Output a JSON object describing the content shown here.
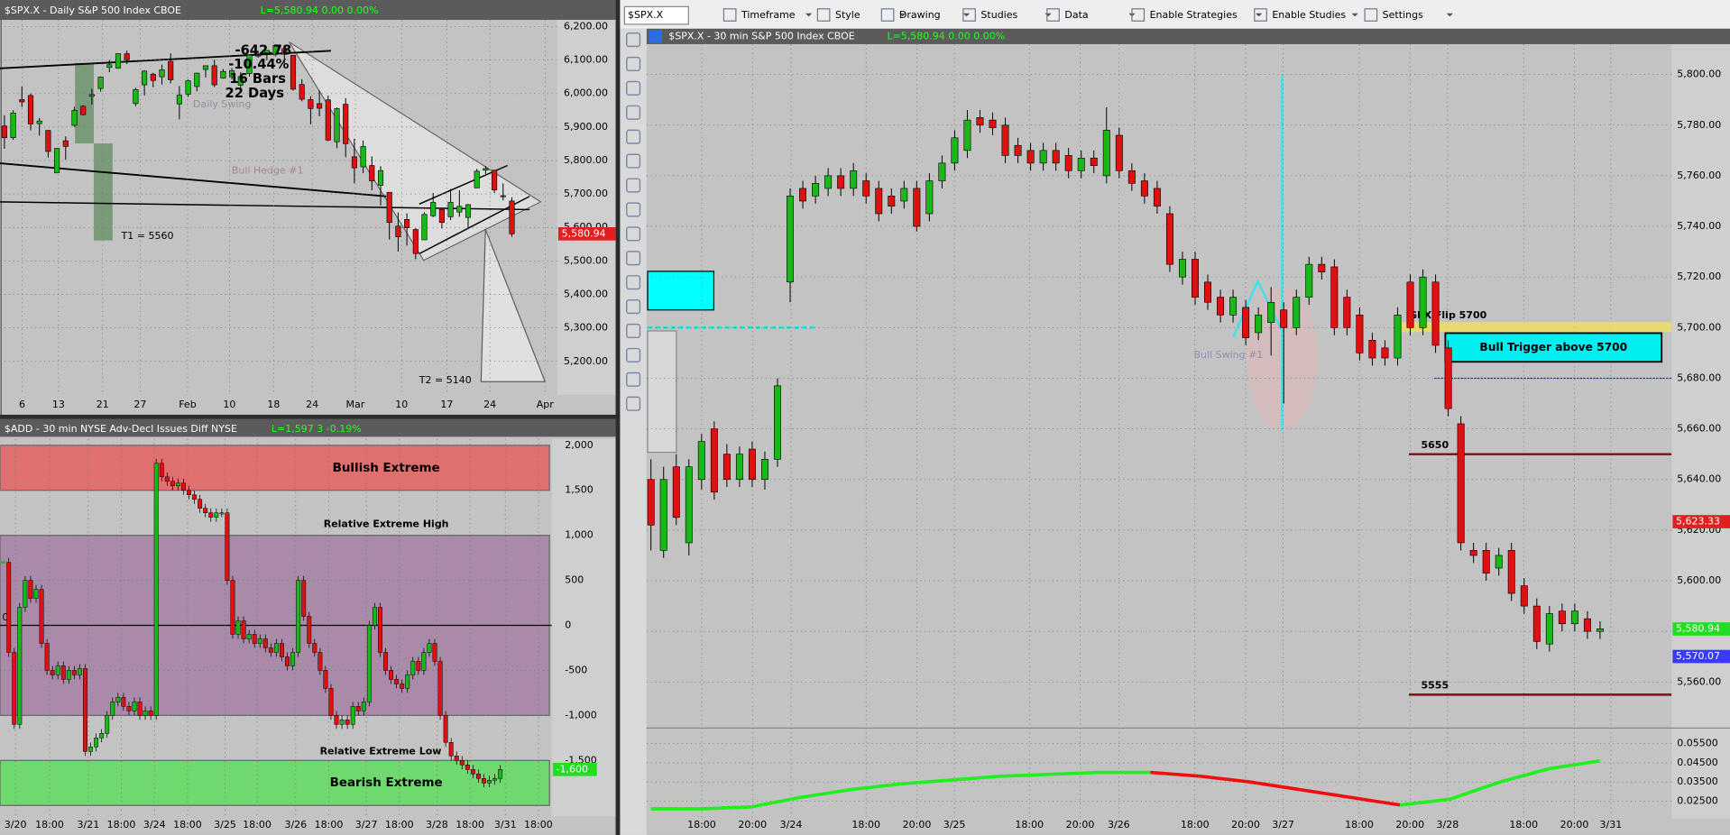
{
  "toolbar": {
    "symbol": "$SPX.X",
    "items": [
      "Timeframe",
      "Style",
      "Drawing",
      "Studies",
      "Data",
      "Enable Strategies",
      "Enable Studies",
      "Settings"
    ]
  },
  "daily": {
    "header": "$SPX.X - Daily  S&P 500 Index  CBOE",
    "quote": "L=5,580.94  0.00  0.00%",
    "ylim": [
      5100,
      6220
    ],
    "yticks": [
      {
        "value": 6200,
        "label": "6,200.00"
      },
      {
        "value": 6100,
        "label": "6,100.00"
      },
      {
        "value": 6000,
        "label": "6,000.00"
      },
      {
        "value": 5900,
        "label": "5,900.00"
      },
      {
        "value": 5800,
        "label": "5,800.00"
      },
      {
        "value": 5700,
        "label": "5,700.00"
      },
      {
        "value": 5600,
        "label": "5,600.00"
      },
      {
        "value": 5500,
        "label": "5,500.00"
      },
      {
        "value": 5400,
        "label": "5,400.00"
      },
      {
        "value": 5300,
        "label": "5,300.00"
      },
      {
        "value": 5200,
        "label": "5,200.00"
      }
    ],
    "xticks": [
      "6",
      "13",
      "21",
      "27",
      "Feb",
      "10",
      "18",
      "24",
      "Mar",
      "10",
      "17",
      "24",
      "Apr"
    ],
    "candles": [
      [
        5903,
        5935,
        5835,
        5868
      ],
      [
        5868,
        5950,
        5862,
        5942
      ],
      [
        5982,
        6021,
        5960,
        5975
      ],
      [
        5994,
        6000,
        5890,
        5909
      ],
      [
        5910,
        5927,
        5874,
        5918
      ],
      [
        5890,
        5890,
        5809,
        5827
      ],
      [
        5763,
        5837,
        5773,
        5836
      ],
      [
        5859,
        5872,
        5802,
        5842
      ],
      [
        5905,
        5960,
        5900,
        5950
      ],
      [
        5962,
        5965,
        5935,
        5937
      ],
      [
        5992,
        6014,
        5967,
        5997
      ],
      [
        6015,
        6051,
        6006,
        6049
      ],
      [
        6078,
        6100,
        6064,
        6086
      ],
      [
        6076,
        6118,
        6074,
        6119
      ],
      [
        6119,
        6128,
        6088,
        6101
      ],
      [
        5970,
        6017,
        5962,
        6012
      ],
      [
        6026,
        6069,
        5994,
        6067
      ],
      [
        6058,
        6062,
        6019,
        6039
      ],
      [
        6050,
        6086,
        6027,
        6071
      ],
      [
        6096,
        6120,
        6030,
        6041
      ],
      [
        5969,
        6022,
        5923,
        5995
      ],
      [
        5998,
        6042,
        5990,
        6038
      ],
      [
        6021,
        6062,
        6007,
        6061
      ],
      [
        6072,
        6084,
        6048,
        6083
      ],
      [
        6083,
        6101,
        6019,
        6026
      ],
      [
        6046,
        6073,
        6044,
        6066
      ],
      [
        6050,
        6076,
        6042,
        6068
      ],
      [
        6025,
        6064,
        6004,
        6051
      ],
      [
        6060,
        6116,
        6051,
        6115
      ],
      [
        6115,
        6127,
        6107,
        6114
      ],
      [
        6121,
        6129,
        6099,
        6129
      ],
      [
        6117,
        6147,
        6111,
        6144
      ],
      [
        6134,
        6134,
        6084,
        6117
      ],
      [
        6114,
        6114,
        6009,
        6013
      ],
      [
        6027,
        6043,
        5977,
        5983
      ],
      [
        5982,
        5992,
        5908,
        5955
      ],
      [
        5970,
        6009,
        5932,
        5956
      ],
      [
        5981,
        5994,
        5858,
        5861
      ],
      [
        5856,
        5959,
        5837,
        5955
      ],
      [
        5968,
        5986,
        5810,
        5850
      ],
      [
        5811,
        5865,
        5732,
        5778
      ],
      [
        5781,
        5860,
        5762,
        5842
      ],
      [
        5785,
        5812,
        5711,
        5739
      ],
      [
        5726,
        5783,
        5666,
        5770
      ],
      [
        5705,
        5706,
        5564,
        5615
      ],
      [
        5604,
        5645,
        5528,
        5572
      ],
      [
        5624,
        5642,
        5546,
        5599
      ],
      [
        5594,
        5598,
        5505,
        5522
      ],
      [
        5563,
        5645,
        5563,
        5639
      ],
      [
        5635,
        5703,
        5631,
        5675
      ],
      [
        5654,
        5654,
        5597,
        5615
      ],
      [
        5632,
        5715,
        5622,
        5675
      ],
      [
        5646,
        5711,
        5632,
        5663
      ],
      [
        5630,
        5670,
        5597,
        5668
      ],
      [
        5718,
        5775,
        5718,
        5768
      ],
      [
        5771,
        5784,
        5760,
        5776
      ],
      [
        5771,
        5772,
        5703,
        5712
      ],
      [
        5695,
        5732,
        5681,
        5693
      ],
      [
        5679,
        5690,
        5572,
        5581
      ]
    ],
    "annotations": [
      "-642.78",
      "-10.44%",
      "16 Bars",
      "22 Days",
      "T1 = 5560",
      "T2 = 5140",
      "Daily Swing",
      "Bull Hedge #1"
    ],
    "tags": [
      {
        "value": 5580.94,
        "label": "5,580.94",
        "color": "#e02020"
      }
    ]
  },
  "add": {
    "header": "$ADD - 30 min  NYSE Adv-Decl Issues Diff  NYSE",
    "quote": "L=1,597  3  -0.19%",
    "ylim": [
      -2120,
      2070
    ],
    "yticks": [
      {
        "value": 2000,
        "label": "2,000"
      },
      {
        "value": 1500,
        "label": "1,500"
      },
      {
        "value": 1000,
        "label": "1,000"
      },
      500,
      0,
      {
        "value": -500,
        "label": "-500"
      },
      {
        "value": -1000,
        "label": "-1,000"
      },
      {
        "value": -1500,
        "label": "-1,500"
      }
    ],
    "zero_label": "0",
    "xticks": [
      "3/20",
      "18:00",
      "3/21",
      "18:00",
      "3/24",
      "18:00",
      "3/25",
      "18:00",
      "3/26",
      "18:00",
      "3/27",
      "18:00",
      "3/28",
      "18:00",
      "3/31",
      "18:00"
    ],
    "zones": [
      {
        "label": "Bullish Extreme",
        "from": 1500,
        "to": 2000,
        "color": "#e07070"
      },
      {
        "label": "Relative Extreme High",
        "from": -1000,
        "to": 1000,
        "color": "#a98aa9"
      },
      {
        "label": "Bearish Extreme",
        "from": -2000,
        "to": -1500,
        "color": "#6fd86f"
      }
    ],
    "low_label": "Relative Extreme Low",
    "values": [
      700,
      -300,
      -1100,
      200,
      500,
      300,
      400,
      -200,
      -500,
      -550,
      -450,
      -600,
      -500,
      -550,
      -480,
      -1400,
      -1350,
      -1250,
      -1200,
      -1000,
      -850,
      -800,
      -900,
      -950,
      -850,
      -1000,
      -950,
      -1000,
      1800,
      1650,
      1600,
      1550,
      1580,
      1500,
      1450,
      1400,
      1300,
      1250,
      1200,
      1250,
      1250,
      500,
      -100,
      50,
      -150,
      -100,
      -200,
      -150,
      -250,
      -300,
      -200,
      -350,
      -450,
      -300,
      500,
      100,
      -200,
      -300,
      -500,
      -700,
      -1000,
      -1100,
      -1050,
      -1100,
      -900,
      -950,
      -850,
      0,
      200,
      -300,
      -500,
      -600,
      -650,
      -700,
      -550,
      -400,
      -500,
      -300,
      -200,
      -400,
      -1000,
      -1300,
      -1450,
      -1500,
      -1550,
      -1600,
      -1650,
      -1700,
      -1750,
      -1720,
      -1700,
      -1600
    ],
    "tags": [
      {
        "value": -1600,
        "label": "-1,600",
        "color": "#22dd22"
      }
    ]
  },
  "intraday": {
    "header": "$SPX.X - 30 min  S&P 500 Index  CBOE",
    "quote": "L=5,580.94  0.00  0.00%",
    "ylim": [
      5544,
      5812
    ],
    "yticks": [
      {
        "value": 5800,
        "label": "5,800.00"
      },
      {
        "value": 5780,
        "label": "5,780.00"
      },
      {
        "value": 5760,
        "label": "5,760.00"
      },
      {
        "value": 5740,
        "label": "5,740.00"
      },
      {
        "value": 5720,
        "label": "5,720.00"
      },
      {
        "value": 5700,
        "label": "5,700.00"
      },
      {
        "value": 5680,
        "label": "5,680.00"
      },
      {
        "value": 5660,
        "label": "5,660.00"
      },
      {
        "value": 5640,
        "label": "5,640.00"
      },
      {
        "value": 5620,
        "label": "5,620.00"
      },
      {
        "value": 5600,
        "label": "5,600.00"
      },
      {
        "value": 5580,
        "label": "5,580.00"
      },
      {
        "value": 5560,
        "label": "5,560.00"
      }
    ],
    "xticks": [
      "18:00",
      "20:00",
      "3/24",
      "18:00",
      "20:00",
      "3/25",
      "18:00",
      "20:00",
      "3/26",
      "18:00",
      "20:00",
      "3/27",
      "18:00",
      "20:00",
      "3/28",
      "18:00",
      "20:00",
      "3/31"
    ],
    "candles": [
      [
        5640,
        5648,
        5612,
        5622
      ],
      [
        5612,
        5645,
        5609,
        5640
      ],
      [
        5645,
        5650,
        5622,
        5625
      ],
      [
        5615,
        5648,
        5610,
        5645
      ],
      [
        5640,
        5658,
        5636,
        5655
      ],
      [
        5660,
        5663,
        5632,
        5635
      ],
      [
        5650,
        5654,
        5637,
        5640
      ],
      [
        5640,
        5653,
        5637,
        5650
      ],
      [
        5652,
        5655,
        5637,
        5640
      ],
      [
        5640,
        5651,
        5636,
        5648
      ],
      [
        5648,
        5680,
        5645,
        5677
      ],
      [
        5718,
        5755,
        5710,
        5752
      ],
      [
        5755,
        5758,
        5747,
        5750
      ],
      [
        5752,
        5760,
        5749,
        5757
      ],
      [
        5755,
        5763,
        5752,
        5760
      ],
      [
        5760,
        5763,
        5752,
        5755
      ],
      [
        5755,
        5765,
        5752,
        5762
      ],
      [
        5758,
        5761,
        5749,
        5752
      ],
      [
        5755,
        5758,
        5742,
        5745
      ],
      [
        5752,
        5755,
        5745,
        5748
      ],
      [
        5750,
        5758,
        5747,
        5755
      ],
      [
        5755,
        5758,
        5738,
        5740
      ],
      [
        5745,
        5761,
        5742,
        5758
      ],
      [
        5758,
        5768,
        5755,
        5765
      ],
      [
        5765,
        5778,
        5762,
        5775
      ],
      [
        5770,
        5786,
        5767,
        5782
      ],
      [
        5783,
        5786,
        5777,
        5780
      ],
      [
        5782,
        5785,
        5776,
        5779
      ],
      [
        5780,
        5783,
        5765,
        5768
      ],
      [
        5772,
        5775,
        5765,
        5768
      ],
      [
        5770,
        5773,
        5762,
        5765
      ],
      [
        5765,
        5773,
        5762,
        5770
      ],
      [
        5770,
        5773,
        5762,
        5765
      ],
      [
        5768,
        5771,
        5759,
        5762
      ],
      [
        5762,
        5770,
        5759,
        5767
      ],
      [
        5767,
        5770,
        5761,
        5764
      ],
      [
        5760,
        5787,
        5757,
        5778
      ],
      [
        5776,
        5779,
        5759,
        5762
      ],
      [
        5762,
        5765,
        5754,
        5757
      ],
      [
        5758,
        5761,
        5749,
        5752
      ],
      [
        5755,
        5758,
        5745,
        5748
      ],
      [
        5745,
        5748,
        5722,
        5725
      ],
      [
        5720,
        5730,
        5717,
        5727
      ],
      [
        5727,
        5730,
        5709,
        5712
      ],
      [
        5718,
        5721,
        5707,
        5710
      ],
      [
        5712,
        5715,
        5702,
        5705
      ],
      [
        5705,
        5715,
        5702,
        5712
      ],
      [
        5708,
        5711,
        5693,
        5696
      ],
      [
        5698,
        5708,
        5695,
        5705
      ],
      [
        5702,
        5716,
        5689,
        5710
      ],
      [
        5707,
        5710,
        5670,
        5700
      ],
      [
        5700,
        5715,
        5697,
        5712
      ],
      [
        5712,
        5728,
        5709,
        5725
      ],
      [
        5725,
        5728,
        5719,
        5722
      ],
      [
        5724,
        5727,
        5697,
        5700
      ],
      [
        5712,
        5715,
        5697,
        5700
      ],
      [
        5705,
        5708,
        5687,
        5690
      ],
      [
        5695,
        5698,
        5685,
        5688
      ],
      [
        5692,
        5695,
        5685,
        5688
      ],
      [
        5688,
        5708,
        5685,
        5705
      ],
      [
        5718,
        5721,
        5697,
        5700
      ],
      [
        5700,
        5723,
        5697,
        5720
      ],
      [
        5718,
        5721,
        5690,
        5693
      ],
      [
        5692,
        5695,
        5665,
        5668
      ],
      [
        5662,
        5665,
        5612,
        5615
      ],
      [
        5612,
        5615,
        5607,
        5610
      ],
      [
        5612,
        5615,
        5600,
        5603
      ],
      [
        5605,
        5613,
        5602,
        5610
      ],
      [
        5612,
        5615,
        5592,
        5595
      ],
      [
        5598,
        5601,
        5587,
        5590
      ],
      [
        5590,
        5593,
        5573,
        5576
      ],
      [
        5575,
        5590,
        5572,
        5587
      ],
      [
        5588,
        5591,
        5580,
        5583
      ],
      [
        5583,
        5591,
        5580,
        5588
      ],
      [
        5585,
        5588,
        5577,
        5580
      ],
      [
        5580,
        5584,
        5577,
        5581
      ]
    ],
    "levels": [
      {
        "label": "5650",
        "value": 5650
      },
      {
        "label": "5555",
        "value": 5555
      }
    ],
    "gex_label": "GEX Flip 5700",
    "gex_value": 5700,
    "trigger_label": "Bull Trigger above 5700",
    "swing_label": "Bull Swing #1",
    "tags": [
      {
        "value": 5623.33,
        "label": "5,623.33",
        "color": "#e02020"
      },
      {
        "value": 5580.94,
        "label": "5,580.94",
        "color": "#22dd22"
      },
      {
        "value": 5570.07,
        "label": "5,570.07",
        "color": "#3a3aff"
      }
    ]
  },
  "indicator": {
    "ylim": [
      0.016,
      0.062
    ],
    "yticks": [
      {
        "value": 0.055,
        "label": "0.05500"
      },
      {
        "value": 0.045,
        "label": "0.04500"
      },
      {
        "value": 0.035,
        "label": "0.03500"
      },
      {
        "value": 0.025,
        "label": "0.02500"
      }
    ],
    "values": [
      0.021,
      0.021,
      0.022,
      0.027,
      0.031,
      0.034,
      0.036,
      0.038,
      0.039,
      0.04,
      0.04,
      0.038,
      0.035,
      0.031,
      0.027,
      0.023,
      0.026,
      0.035,
      0.042,
      0.046
    ]
  }
}
